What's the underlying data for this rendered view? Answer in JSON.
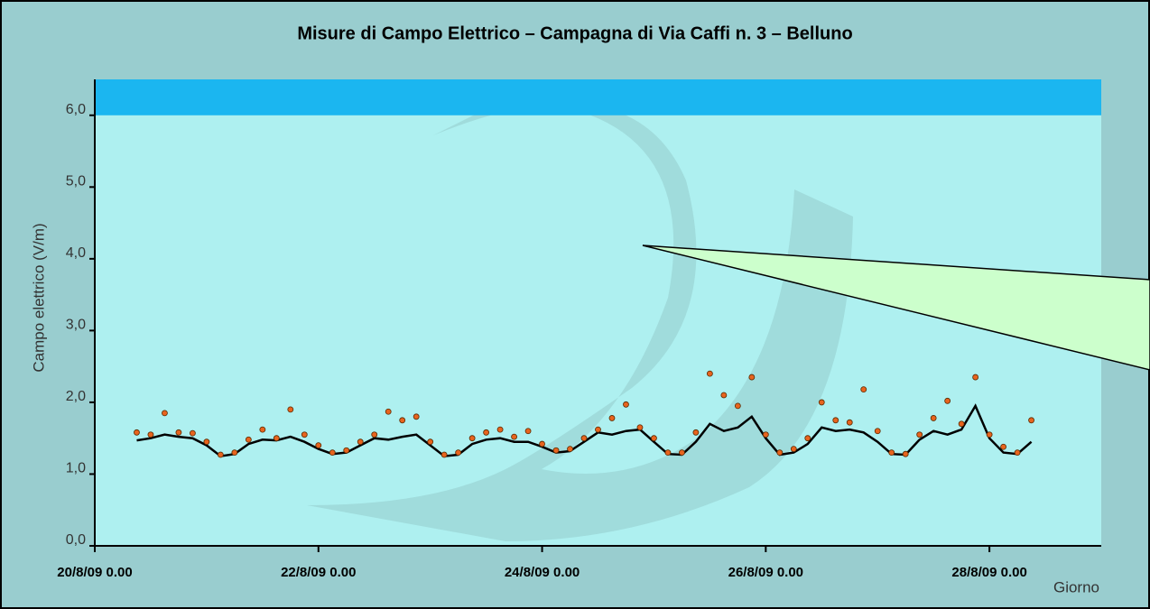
{
  "chart_data": {
    "type": "line",
    "title": "Misure di Campo Elettrico – Campagna di Via Caffi n. 3 – Belluno",
    "y_label": "Campo elettrico (V/m)",
    "x_label": "Giorno",
    "x": [
      0.375,
      0.5,
      0.625,
      0.75,
      0.875,
      1,
      1.125,
      1.25,
      1.375,
      1.5,
      1.625,
      1.75,
      1.875,
      2,
      2.125,
      2.25,
      2.375,
      2.5,
      2.625,
      2.75,
      2.875,
      3,
      3.125,
      3.25,
      3.375,
      3.5,
      3.625,
      3.75,
      3.875,
      4,
      4.125,
      4.25,
      4.375,
      4.5,
      4.625,
      4.75,
      4.875,
      5,
      5.125,
      5.25,
      5.375,
      5.5,
      5.625,
      5.75,
      5.875,
      6,
      6.125,
      6.25,
      6.375,
      6.5,
      6.625,
      6.75,
      6.875,
      7,
      7.125,
      7.25,
      7.375,
      7.5,
      7.625,
      7.75,
      7.875,
      8,
      8.125,
      8.25,
      8.375
    ],
    "series": [
      {
        "type": "line",
        "color": "#000000",
        "values": [
          1.47,
          1.5,
          1.55,
          1.52,
          1.5,
          1.4,
          1.25,
          1.28,
          1.42,
          1.48,
          1.47,
          1.52,
          1.45,
          1.35,
          1.28,
          1.3,
          1.4,
          1.5,
          1.48,
          1.52,
          1.55,
          1.4,
          1.25,
          1.27,
          1.42,
          1.48,
          1.5,
          1.45,
          1.45,
          1.38,
          1.3,
          1.32,
          1.45,
          1.58,
          1.55,
          1.6,
          1.62,
          1.45,
          1.28,
          1.27,
          1.45,
          1.7,
          1.6,
          1.65,
          1.8,
          1.5,
          1.27,
          1.3,
          1.42,
          1.65,
          1.6,
          1.62,
          1.58,
          1.45,
          1.28,
          1.27,
          1.48,
          1.6,
          1.55,
          1.62,
          1.95,
          1.5,
          1.3,
          1.28,
          1.45
        ]
      },
      {
        "type": "scatter",
        "color": "#e8641e",
        "values": [
          1.58,
          1.55,
          1.85,
          1.58,
          1.57,
          1.45,
          1.27,
          1.3,
          1.48,
          1.62,
          1.5,
          1.9,
          1.55,
          1.4,
          1.3,
          1.33,
          1.45,
          1.55,
          1.87,
          1.75,
          1.8,
          1.45,
          1.27,
          1.3,
          1.5,
          1.58,
          1.62,
          1.52,
          1.6,
          1.42,
          1.33,
          1.35,
          1.5,
          1.62,
          1.78,
          1.97,
          1.65,
          1.5,
          1.3,
          1.3,
          1.58,
          2.4,
          2.1,
          1.95,
          2.35,
          1.55,
          1.3,
          1.35,
          1.5,
          2.0,
          1.75,
          1.72,
          2.18,
          1.6,
          1.3,
          1.28,
          1.55,
          1.78,
          2.02,
          1.7,
          2.35,
          1.55,
          1.38,
          1.3,
          1.75
        ]
      }
    ],
    "limit_band": [
      6.0,
      6.5
    ],
    "xlim": [
      0,
      9
    ],
    "xticks": [
      {
        "value": 0,
        "label": "20/8/09 0.00"
      },
      {
        "value": 2,
        "label": "22/8/09 0.00"
      },
      {
        "value": 4,
        "label": "24/8/09 0.00"
      },
      {
        "value": 6,
        "label": "26/8/09 0.00"
      },
      {
        "value": 8,
        "label": "28/8/09 0.00"
      }
    ],
    "ylim": [
      0,
      6.5
    ],
    "yticks": [
      {
        "value": 0,
        "label": "0,0"
      },
      {
        "value": 1,
        "label": "1,0"
      },
      {
        "value": 2,
        "label": "2,0"
      },
      {
        "value": 3,
        "label": "3,0"
      },
      {
        "value": 4,
        "label": "4,0"
      },
      {
        "value": 5,
        "label": "5,0"
      },
      {
        "value": 6,
        "label": "6,0"
      }
    ]
  }
}
